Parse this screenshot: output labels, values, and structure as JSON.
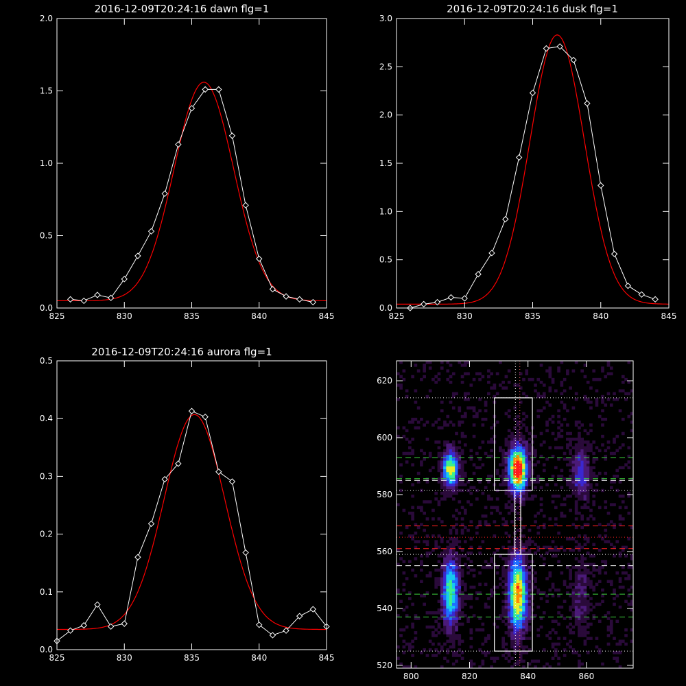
{
  "chart_data": [
    {
      "type": "line",
      "title": "2016-12-09T20:24:16 dawn flg=1",
      "xlim": [
        825,
        845
      ],
      "ylim": [
        0.0,
        2.0
      ],
      "xticks": [
        "825",
        "830",
        "835",
        "840",
        "845"
      ],
      "yticks": [
        "0.0",
        "0.5",
        "1.0",
        "1.5",
        "2.0"
      ],
      "xtick_values": [
        825,
        830,
        835,
        840,
        845
      ],
      "ytick_values": [
        0.0,
        0.5,
        1.0,
        1.5,
        2.0
      ],
      "series": [
        {
          "kind": "observed",
          "color": "#ffffff",
          "marker": "diamond",
          "x": [
            826,
            827,
            828,
            829,
            830,
            831,
            832,
            833,
            834,
            835,
            836,
            837,
            838,
            839,
            840,
            841,
            842,
            843,
            844
          ],
          "y": [
            0.06,
            0.05,
            0.09,
            0.07,
            0.2,
            0.36,
            0.53,
            0.79,
            1.13,
            1.38,
            1.51,
            1.51,
            1.19,
            0.71,
            0.34,
            0.13,
            0.08,
            0.06,
            0.04
          ]
        },
        {
          "kind": "fit",
          "color": "#ff0000",
          "gaussian": {
            "amplitude": 1.51,
            "center": 835.9,
            "sigma": 2.2,
            "baseline": 0.05
          }
        }
      ]
    },
    {
      "type": "line",
      "title": "2016-12-09T20:24:16 dusk flg=1",
      "xlim": [
        825,
        845
      ],
      "ylim": [
        0.0,
        3.0
      ],
      "xticks": [
        "825",
        "830",
        "835",
        "840",
        "845"
      ],
      "yticks": [
        "0.0",
        "0.5",
        "1.0",
        "1.5",
        "2.0",
        "2.5",
        "3.0"
      ],
      "xtick_values": [
        825,
        830,
        835,
        840,
        845
      ],
      "ytick_values": [
        0.0,
        0.5,
        1.0,
        1.5,
        2.0,
        2.5,
        3.0
      ],
      "series": [
        {
          "kind": "observed",
          "color": "#ffffff",
          "marker": "diamond",
          "x": [
            826,
            827,
            828,
            829,
            830,
            831,
            832,
            833,
            834,
            835,
            836,
            837,
            838,
            839,
            840,
            841,
            842,
            843,
            844
          ],
          "y": [
            0.0,
            0.04,
            0.06,
            0.11,
            0.1,
            0.35,
            0.57,
            0.92,
            1.56,
            2.23,
            2.69,
            2.71,
            2.57,
            2.12,
            1.27,
            0.56,
            0.23,
            0.14,
            0.09
          ]
        },
        {
          "kind": "fit",
          "color": "#ff0000",
          "gaussian": {
            "amplitude": 2.79,
            "center": 836.8,
            "sigma": 2.0,
            "baseline": 0.04
          }
        }
      ]
    },
    {
      "type": "line",
      "title": "2016-12-09T20:24:16 aurora flg=1",
      "xlim": [
        825,
        845
      ],
      "ylim": [
        0.0,
        0.5
      ],
      "xticks": [
        "825",
        "830",
        "835",
        "840",
        "845"
      ],
      "yticks": [
        "0.0",
        "0.1",
        "0.2",
        "0.3",
        "0.4",
        "0.5"
      ],
      "xtick_values": [
        825,
        830,
        835,
        840,
        845
      ],
      "ytick_values": [
        0.0,
        0.1,
        0.2,
        0.3,
        0.4,
        0.5
      ],
      "series": [
        {
          "kind": "observed",
          "color": "#ffffff",
          "marker": "diamond",
          "x": [
            825,
            826,
            827,
            828,
            829,
            830,
            831,
            832,
            833,
            834,
            835,
            836,
            837,
            838,
            839,
            840,
            841,
            842,
            843,
            844,
            845
          ],
          "y": [
            0.015,
            0.033,
            0.042,
            0.078,
            0.04,
            0.045,
            0.16,
            0.218,
            0.295,
            0.322,
            0.413,
            0.403,
            0.308,
            0.291,
            0.168,
            0.043,
            0.025,
            0.033,
            0.058,
            0.07,
            0.04
          ]
        },
        {
          "kind": "fit",
          "color": "#ff0000",
          "gaussian": {
            "amplitude": 0.372,
            "center": 835.2,
            "sigma": 2.25,
            "baseline": 0.035
          }
        }
      ]
    },
    {
      "type": "heatmap",
      "title": "",
      "xlim": [
        795,
        876
      ],
      "ylim": [
        519,
        627
      ],
      "xticks": [
        "800",
        "820",
        "840",
        "860"
      ],
      "yticks": [
        "520",
        "540",
        "560",
        "580",
        "600",
        "620"
      ],
      "xtick_values": [
        800,
        820,
        840,
        860
      ],
      "ytick_values": [
        520,
        540,
        560,
        580,
        600,
        620
      ],
      "colormap": [
        "#000000",
        "#2a0a3a",
        "#4b1a78",
        "#3a28d0",
        "#1f6fff",
        "#17c8f0",
        "#3cf08c",
        "#e6f02a",
        "#ff8a00",
        "#ff1a1a"
      ],
      "blobs": [
        {
          "x": 813.5,
          "y": 589,
          "sx": 1.8,
          "sy": 4.5,
          "amp": 0.72
        },
        {
          "x": 813.5,
          "y": 546,
          "sx": 2.0,
          "sy": 8.5,
          "amp": 0.62
        },
        {
          "x": 836.5,
          "y": 589,
          "sx": 2.2,
          "sy": 5.5,
          "amp": 1.0
        },
        {
          "x": 836.5,
          "y": 545,
          "sx": 2.2,
          "sy": 9.0,
          "amp": 0.82
        },
        {
          "x": 858.0,
          "y": 588,
          "sx": 2.2,
          "sy": 6.5,
          "amp": 0.32
        },
        {
          "x": 858.0,
          "y": 545,
          "sx": 2.2,
          "sy": 9.0,
          "amp": 0.18
        }
      ],
      "boxes": [
        {
          "x0": 828.5,
          "x1": 841.5,
          "y0": 581.5,
          "y1": 614
        },
        {
          "x0": 828.5,
          "x1": 841.5,
          "y0": 525,
          "y1": 559
        },
        {
          "x0": 835.5,
          "x1": 837.5,
          "y0": 559,
          "y1": 581.5
        }
      ],
      "hlines": [
        {
          "y": 614,
          "color": "#ffffff",
          "style": "dotted"
        },
        {
          "y": 593,
          "color": "#3cd23c",
          "style": "dashed"
        },
        {
          "y": 585,
          "color": "#ffffff",
          "style": "dashed"
        },
        {
          "y": 585.6,
          "color": "#3cd23c",
          "style": "dashed"
        },
        {
          "y": 581.5,
          "color": "#ffffff",
          "style": "dotted"
        },
        {
          "y": 569,
          "color": "#ff2020",
          "style": "dashed"
        },
        {
          "y": 565,
          "color": "#ff2020",
          "style": "dotted"
        },
        {
          "y": 561,
          "color": "#ff2020",
          "style": "dashed"
        },
        {
          "y": 559,
          "color": "#ffffff",
          "style": "dotted"
        },
        {
          "y": 555,
          "color": "#ffffff",
          "style": "dashed"
        },
        {
          "y": 545,
          "color": "#3cd23c",
          "style": "dashed"
        },
        {
          "y": 537,
          "color": "#3cd23c",
          "style": "dashed"
        },
        {
          "y": 525,
          "color": "#ffffff",
          "style": "dotted"
        }
      ],
      "vlines": [
        {
          "x": 835.7,
          "color": "#ffffff",
          "style": "dotted"
        },
        {
          "x": 837.2,
          "color": "#ff6060",
          "style": "dotted"
        }
      ]
    }
  ]
}
